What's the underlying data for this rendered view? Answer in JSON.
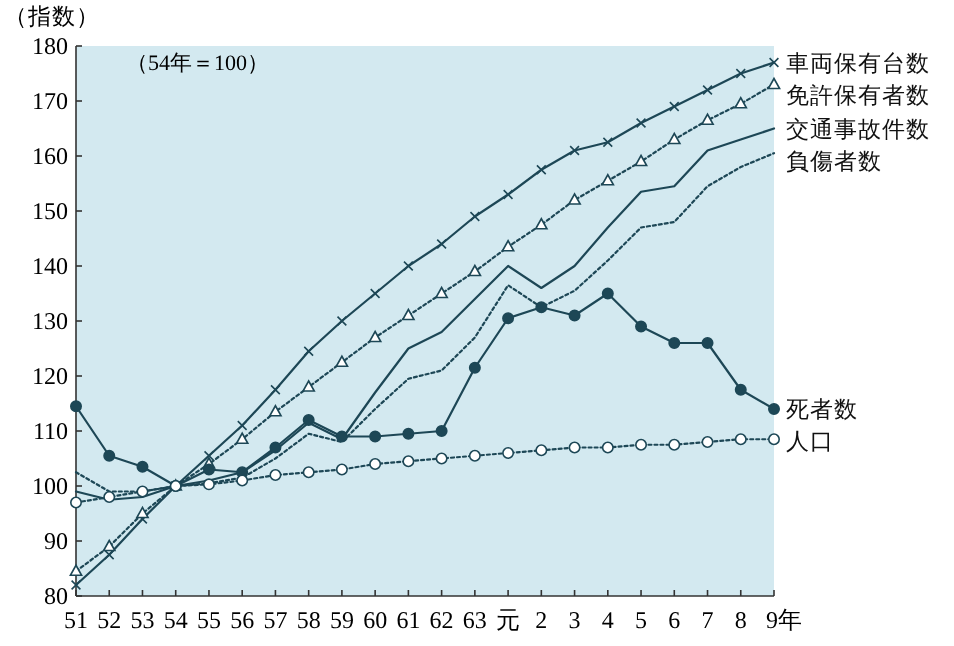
{
  "chart_data": {
    "type": "line",
    "ylabel": "（指数）",
    "annotations": [
      "（54年＝100）"
    ],
    "categories": [
      "51",
      "52",
      "53",
      "54",
      "55",
      "56",
      "57",
      "58",
      "59",
      "60",
      "61",
      "62",
      "63",
      "元",
      "2",
      "3",
      "4",
      "5",
      "6",
      "7",
      "8",
      "9年"
    ],
    "ylim": [
      80,
      180
    ],
    "yticks": [
      80,
      90,
      100,
      110,
      120,
      130,
      140,
      150,
      160,
      170,
      180
    ],
    "grid": false,
    "legend": false,
    "series": [
      {
        "name": "車両保有台数",
        "color": "#1d4756",
        "marker": "cross",
        "line_style": "solid",
        "values": [
          82,
          87.5,
          94,
          100,
          105.5,
          111,
          117.5,
          124.5,
          130,
          135,
          140,
          144,
          149,
          153,
          157.5,
          161,
          162.5,
          166,
          169,
          172,
          175,
          177
        ]
      },
      {
        "name": "免許保有者数",
        "color": "#1d4756",
        "marker": "triangle",
        "line_style": "dotted",
        "values": [
          84.5,
          89,
          95,
          100,
          104,
          108.5,
          113.5,
          118,
          122.5,
          127,
          131,
          135,
          139,
          143.5,
          147.5,
          152,
          155.5,
          159,
          163,
          166.5,
          169.5,
          173
        ]
      },
      {
        "name": "交通事故件数",
        "color": "#1d4756",
        "marker": "none",
        "line_style": "solid",
        "values": [
          99,
          97.5,
          98,
          100,
          101,
          102.5,
          106.5,
          111.5,
          108.5,
          117,
          125,
          128,
          134,
          140,
          136,
          140,
          147,
          153.5,
          154.5,
          161,
          163,
          165
        ]
      },
      {
        "name": "負傷者数",
        "color": "#1d4756",
        "marker": "none",
        "line_style": "dotted",
        "values": [
          102.5,
          99,
          99,
          100,
          100.5,
          101.5,
          105,
          109.5,
          108,
          114,
          119.5,
          121,
          127,
          136.5,
          132.5,
          135.5,
          141,
          147,
          148,
          154.5,
          158,
          160.5
        ]
      },
      {
        "name": "死者数",
        "color": "#1d4756",
        "marker": "circle",
        "line_style": "solid",
        "values": [
          114.5,
          105.5,
          103.5,
          100,
          103,
          102.5,
          107,
          112,
          109,
          109,
          109.5,
          110,
          121.5,
          130.5,
          132.5,
          131,
          135,
          129,
          126,
          126,
          117.5,
          114
        ]
      },
      {
        "name": "人口",
        "color": "#1d4756",
        "marker": "circle",
        "line_style": "dotted",
        "values": [
          97,
          98,
          99,
          100,
          100.3,
          101,
          102,
          102.5,
          103,
          104,
          104.5,
          105,
          105.5,
          106,
          106.5,
          107,
          107,
          107.5,
          107.5,
          108,
          108.5,
          108.5
        ]
      }
    ]
  }
}
